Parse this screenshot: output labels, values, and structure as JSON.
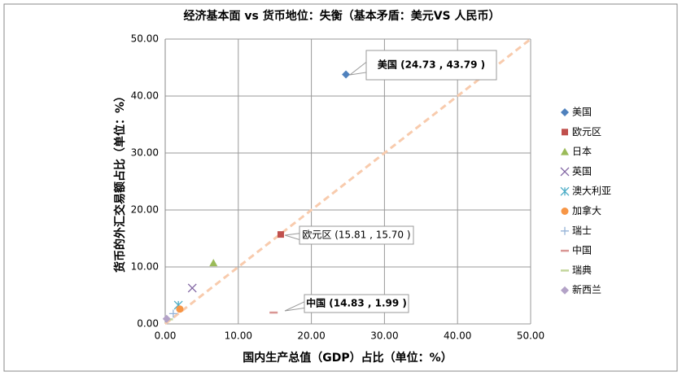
{
  "chart_data": {
    "type": "scatter",
    "title": "经济基本面 vs 货币地位：失衡（基本矛盾：美元VS 人民币）",
    "x_label": "国内生产总值（GDP）占比（单位：%）",
    "y_label": "货币的外汇交易额占比（单位：%）",
    "xlim": [
      0,
      50
    ],
    "ylim": [
      0,
      50
    ],
    "xticks": [
      {
        "value": 0,
        "label": "0.00"
      },
      {
        "value": 10,
        "label": "10.00"
      },
      {
        "value": 20,
        "label": "20.00"
      },
      {
        "value": 30,
        "label": "30.00"
      },
      {
        "value": 40,
        "label": "40.00"
      },
      {
        "value": 50,
        "label": "50.00"
      }
    ],
    "yticks": [
      {
        "value": 0,
        "label": "0.00"
      },
      {
        "value": 10,
        "label": "10.00"
      },
      {
        "value": 20,
        "label": "20.00"
      },
      {
        "value": 30,
        "label": "30.00"
      },
      {
        "value": 40,
        "label": "40.00"
      },
      {
        "value": 50,
        "label": "50.00"
      }
    ],
    "grid": true,
    "legend": "right",
    "diagonal_line": {
      "color": "#f8cbad",
      "dashed": true
    },
    "series": [
      {
        "name": "美国",
        "color": "#4f81bd",
        "marker": "diamond",
        "x": [
          24.73
        ],
        "values": [
          43.79
        ]
      },
      {
        "name": "欧元区",
        "color": "#c0504d",
        "marker": "square",
        "x": [
          15.81
        ],
        "values": [
          15.7
        ]
      },
      {
        "name": "日本",
        "color": "#9bbb59",
        "marker": "triangle",
        "x": [
          6.6
        ],
        "values": [
          10.7
        ]
      },
      {
        "name": "英国",
        "color": "#8064a2",
        "marker": "x",
        "x": [
          3.7
        ],
        "values": [
          6.3
        ]
      },
      {
        "name": "澳大利亚",
        "color": "#4bacc6",
        "marker": "star",
        "x": [
          1.8
        ],
        "values": [
          3.3
        ]
      },
      {
        "name": "加拿大",
        "color": "#f79646",
        "marker": "circle",
        "x": [
          2.0
        ],
        "values": [
          2.6
        ]
      },
      {
        "name": "瑞士",
        "color": "#95b3d7",
        "marker": "plus",
        "x": [
          1.1
        ],
        "values": [
          1.8
        ]
      },
      {
        "name": "中国",
        "color": "#d99694",
        "marker": "dash",
        "x": [
          14.83
        ],
        "values": [
          1.99
        ]
      },
      {
        "name": "瑞典",
        "color": "#c3d69b",
        "marker": "dash",
        "x": [
          0.5
        ],
        "values": [
          0.8
        ]
      },
      {
        "name": "新西兰",
        "color": "#b3a2c7",
        "marker": "diamond",
        "x": [
          0.2
        ],
        "values": [
          0.9
        ]
      }
    ],
    "annotations": [
      "美国 (24.73 , 43.79 )",
      "欧元区 (15.81 , 15.70 )",
      "中国 (14.83 , 1.99 )"
    ]
  }
}
